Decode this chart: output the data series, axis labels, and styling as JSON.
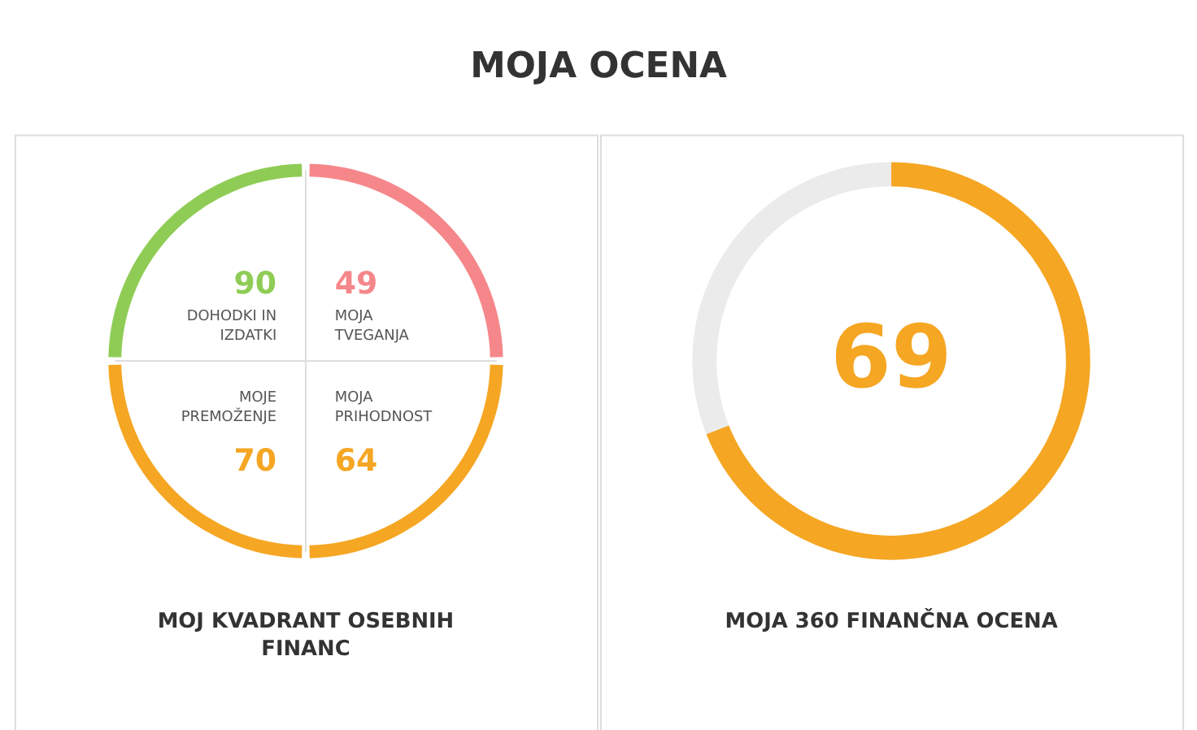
{
  "chart_data": [
    {
      "type": "other",
      "title": "MOJA OCENA",
      "xlabel": "MOJ KVADRANT OSEBNIH FINANC",
      "categories": [
        "DOHODKI IN IZDATKI",
        "MOJA TVEGANJA",
        "MOJE PREMOŽENJE",
        "MOJA PRIHODNOST"
      ],
      "values": [
        90,
        49,
        70,
        64
      ],
      "colors": [
        "#8fcc55",
        "#f5878a",
        "#f5a623",
        "#f5a623"
      ],
      "data_labels": true
    },
    {
      "type": "donut",
      "xlabel": "MOJA 360 FINANČNA OCENA",
      "categories": [
        null,
        null
      ],
      "values": [
        69,
        31
      ],
      "colors": [
        "#f5a623",
        "#ebebeb"
      ],
      "value_labels": [
        "69",
        null
      ]
    }
  ]
}
